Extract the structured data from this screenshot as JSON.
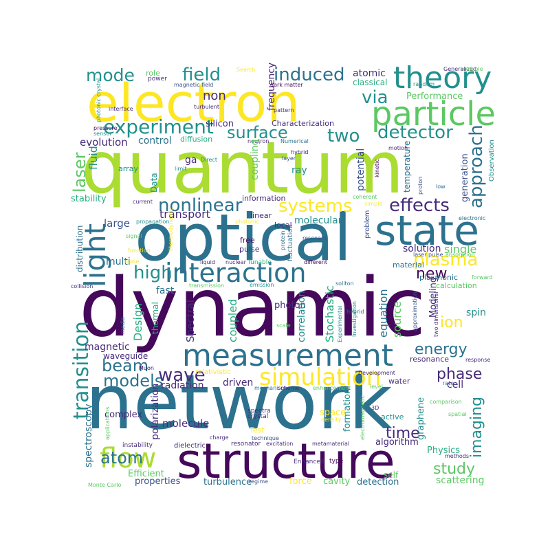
{
  "palette": {
    "d": "#45085b",
    "p": "#472c7a",
    "b": "#3b528b",
    "t": "#2c728e",
    "c": "#21908d",
    "g": "#27ad81",
    "l": "#5cc863",
    "y": "#aadc32",
    "k": "#fde725"
  },
  "words": [
    {
      "text": "quantum",
      "color": "y"
    },
    {
      "text": "dynamic",
      "color": "d"
    },
    {
      "text": "network",
      "color": "t"
    },
    {
      "text": "optical",
      "color": "t"
    },
    {
      "text": "electron",
      "color": "k"
    },
    {
      "text": "structure",
      "color": "d"
    },
    {
      "text": "state",
      "color": "t"
    },
    {
      "text": "particle",
      "color": "l"
    },
    {
      "text": "theory",
      "color": "c"
    },
    {
      "text": "measurement",
      "color": "t"
    },
    {
      "text": "interaction",
      "color": "t"
    },
    {
      "text": "light",
      "color": "t"
    },
    {
      "text": "simulation",
      "color": "k"
    },
    {
      "text": "experiment",
      "color": "c"
    },
    {
      "text": "flow",
      "color": "y"
    },
    {
      "text": "field",
      "color": "c"
    },
    {
      "text": "induced",
      "color": "t"
    },
    {
      "text": "mode",
      "color": "c"
    },
    {
      "text": "surface",
      "color": "c"
    },
    {
      "text": "detector",
      "color": "c"
    },
    {
      "text": "two",
      "color": "c"
    },
    {
      "text": "via",
      "color": "c"
    },
    {
      "text": "nonlinear",
      "color": "t"
    },
    {
      "text": "systems",
      "color": "k"
    },
    {
      "text": "effects",
      "color": "p"
    },
    {
      "text": "approach",
      "color": "t"
    },
    {
      "text": "plasma",
      "color": "k"
    },
    {
      "text": "high",
      "color": "c"
    },
    {
      "text": "new",
      "color": "d"
    },
    {
      "text": "laser",
      "color": "l"
    },
    {
      "text": "transition",
      "color": "c"
    },
    {
      "text": "beam",
      "color": "t"
    },
    {
      "text": "models",
      "color": "t"
    },
    {
      "text": "wave",
      "color": "p"
    },
    {
      "text": "atom",
      "color": "t"
    },
    {
      "text": "energy",
      "color": "t"
    },
    {
      "text": "phase",
      "color": "p"
    },
    {
      "text": "ion",
      "color": "k"
    },
    {
      "text": "imaging",
      "color": "c"
    },
    {
      "text": "time",
      "color": "p"
    },
    {
      "text": "study",
      "color": "l"
    },
    {
      "text": "transport",
      "color": "p"
    },
    {
      "text": "fluid",
      "color": "c"
    },
    {
      "text": "single",
      "color": "l"
    },
    {
      "text": "solution",
      "color": "p"
    },
    {
      "text": "molecular",
      "color": "c"
    },
    {
      "text": "large",
      "color": "b"
    },
    {
      "text": "multi",
      "color": "t"
    },
    {
      "text": "non",
      "color": "p"
    },
    {
      "text": "evolution",
      "color": "p"
    },
    {
      "text": "control",
      "color": "t"
    },
    {
      "text": "silicon",
      "color": "p"
    },
    {
      "text": "frequency",
      "color": "p"
    },
    {
      "text": "atomic",
      "color": "p"
    },
    {
      "text": "classical",
      "color": "g"
    },
    {
      "text": "Performance",
      "color": "l"
    },
    {
      "text": "role",
      "color": "l"
    },
    {
      "text": "power",
      "color": "p"
    },
    {
      "text": "magnetic field",
      "color": "b"
    },
    {
      "text": "dark matter",
      "color": "d"
    },
    {
      "text": "random",
      "color": "c"
    },
    {
      "text": "Generalized",
      "color": "p"
    },
    {
      "text": "multiple",
      "color": "l"
    },
    {
      "text": "Search",
      "color": "k"
    },
    {
      "text": "turbulent",
      "color": "p"
    },
    {
      "text": "pattern",
      "color": "p"
    },
    {
      "text": "interface",
      "color": "p"
    },
    {
      "text": "Characterization",
      "color": "p"
    },
    {
      "text": "pressure",
      "color": "d"
    },
    {
      "text": "sensor",
      "color": "c"
    },
    {
      "text": "photonic crystal",
      "color": "c"
    },
    {
      "text": "neutron",
      "color": "p"
    },
    {
      "text": "Numerical",
      "color": "t"
    },
    {
      "text": "diffusion",
      "color": "g"
    },
    {
      "text": "hybrid",
      "color": "p"
    },
    {
      "text": "layer",
      "color": "b"
    },
    {
      "text": "coupling",
      "color": "l"
    },
    {
      "text": "ray",
      "color": "c"
    },
    {
      "text": "ga",
      "color": "p"
    },
    {
      "text": "Direct",
      "color": "c"
    },
    {
      "text": "limit",
      "color": "c"
    },
    {
      "text": "array",
      "color": "c"
    },
    {
      "text": "Data",
      "color": "c"
    },
    {
      "text": "potential",
      "color": "b"
    },
    {
      "text": "generation",
      "color": "b"
    },
    {
      "text": "temperature",
      "color": "t"
    },
    {
      "text": "kinetic",
      "color": "d"
    },
    {
      "text": "motion",
      "color": "p"
    },
    {
      "text": "proton",
      "color": "b"
    },
    {
      "text": "Observation",
      "color": "c"
    },
    {
      "text": "low",
      "color": "t"
    },
    {
      "text": "stability",
      "color": "g"
    },
    {
      "text": "information",
      "color": "p"
    },
    {
      "text": "current",
      "color": "p"
    },
    {
      "text": "coherent",
      "color": "l"
    },
    {
      "text": "simple",
      "color": "k"
    },
    {
      "text": "electronic",
      "color": "t"
    },
    {
      "text": "propagation",
      "color": "c"
    },
    {
      "text": "photonic",
      "color": "k"
    },
    {
      "text": "linear",
      "color": "p"
    },
    {
      "text": "local",
      "color": "p"
    },
    {
      "text": "problem",
      "color": "b"
    },
    {
      "text": "free",
      "color": "d"
    },
    {
      "text": "pulse",
      "color": "p"
    },
    {
      "text": "protein",
      "color": "t"
    },
    {
      "text": "fluctuation",
      "color": "t"
    },
    {
      "text": "resonant",
      "color": "b"
    },
    {
      "text": "signal",
      "color": "l"
    },
    {
      "text": "Tunable",
      "color": "g"
    },
    {
      "text": "laser pulse",
      "color": "b"
    },
    {
      "text": "absorption",
      "color": "l"
    },
    {
      "text": "liquid",
      "color": "p"
    },
    {
      "text": "nuclear",
      "color": "p"
    },
    {
      "text": "different",
      "color": "d"
    },
    {
      "text": "function",
      "color": "k"
    },
    {
      "text": "thermodynamic",
      "color": "k"
    },
    {
      "text": "material",
      "color": "t"
    },
    {
      "text": "forward",
      "color": "l"
    },
    {
      "text": "distribution",
      "color": "t"
    },
    {
      "text": "noise",
      "color": "k"
    },
    {
      "text": "collision",
      "color": "p"
    },
    {
      "text": "transmission",
      "color": "l"
    },
    {
      "text": "emission",
      "color": "c"
    },
    {
      "text": "soliton",
      "color": "t"
    },
    {
      "text": "plasmonic",
      "color": "t"
    },
    {
      "text": "calculation",
      "color": "l"
    },
    {
      "text": "fast",
      "color": "t"
    },
    {
      "text": "photon",
      "color": "p"
    },
    {
      "text": "Modeling",
      "color": "p"
    },
    {
      "text": "equation",
      "color": "t"
    },
    {
      "text": "source",
      "color": "l"
    },
    {
      "text": "spin",
      "color": "c"
    },
    {
      "text": "Stochastic",
      "color": "g"
    },
    {
      "text": "correlation",
      "color": "c"
    },
    {
      "text": "coupled",
      "color": "g"
    },
    {
      "text": "Spectral",
      "color": "p"
    },
    {
      "text": "Design",
      "color": "g"
    },
    {
      "text": "thermal",
      "color": "g"
    },
    {
      "text": "media",
      "color": "t"
    },
    {
      "text": "scale",
      "color": "l"
    },
    {
      "text": "Experimental",
      "color": "c"
    },
    {
      "text": "Investigation",
      "color": "c"
    },
    {
      "text": "hybrid",
      "color": "t"
    },
    {
      "text": "approximation",
      "color": "b"
    },
    {
      "text": "two dimensional",
      "color": "p"
    },
    {
      "text": "magnetic",
      "color": "p"
    },
    {
      "text": "waveguide",
      "color": "p"
    },
    {
      "text": "resonance",
      "color": "p"
    },
    {
      "text": "response",
      "color": "p"
    },
    {
      "text": "Muon",
      "color": "d"
    },
    {
      "text": "relativistic",
      "color": "k"
    },
    {
      "text": "radiation",
      "color": "p"
    },
    {
      "text": "driven",
      "color": "p"
    },
    {
      "text": "water",
      "color": "p"
    },
    {
      "text": "cell",
      "color": "p"
    },
    {
      "text": "rate",
      "color": "t"
    },
    {
      "text": "level",
      "color": "l"
    },
    {
      "text": "mechanism",
      "color": "t"
    },
    {
      "text": "scheme",
      "color": "p"
    },
    {
      "text": "enhancement",
      "color": "l"
    },
    {
      "text": "Development",
      "color": "p"
    },
    {
      "text": "spectroscopy",
      "color": "t"
    },
    {
      "text": "complex",
      "color": "p"
    },
    {
      "text": "polarization",
      "color": "p"
    },
    {
      "text": "molecule",
      "color": "p"
    },
    {
      "text": "graphene",
      "color": "c"
    },
    {
      "text": "formation",
      "color": "c"
    },
    {
      "text": "space",
      "color": "k"
    },
    {
      "text": "active",
      "color": "c"
    },
    {
      "text": "electromagnetic",
      "color": "l"
    },
    {
      "text": "spatial",
      "color": "l"
    },
    {
      "text": "comparison",
      "color": "l"
    },
    {
      "text": "3D",
      "color": "p"
    },
    {
      "text": "density",
      "color": "k"
    },
    {
      "text": "spectra",
      "color": "p"
    },
    {
      "text": "crystal",
      "color": "p"
    },
    {
      "text": "Test",
      "color": "k"
    },
    {
      "text": "applications",
      "color": "l"
    },
    {
      "text": "charge",
      "color": "p"
    },
    {
      "text": "Physics",
      "color": "g"
    },
    {
      "text": "algorithm",
      "color": "p"
    },
    {
      "text": "methods",
      "color": "p"
    },
    {
      "text": "instability",
      "color": "p"
    },
    {
      "text": "dielectric",
      "color": "p"
    },
    {
      "text": "resonator",
      "color": "p"
    },
    {
      "text": "excitation",
      "color": "p"
    },
    {
      "text": "metamaterial",
      "color": "p"
    },
    {
      "text": "Enhanced",
      "color": "p"
    },
    {
      "text": "type",
      "color": "d"
    },
    {
      "text": "self",
      "color": "l"
    },
    {
      "text": "Efficient",
      "color": "l"
    },
    {
      "text": "properties",
      "color": "b"
    },
    {
      "text": "turbulence",
      "color": "t"
    },
    {
      "text": "regime",
      "color": "b"
    },
    {
      "text": "force",
      "color": "k"
    },
    {
      "text": "cavity",
      "color": "l"
    },
    {
      "text": "detection",
      "color": "t"
    },
    {
      "text": "scattering",
      "color": "l"
    },
    {
      "text": "technique",
      "color": "b"
    },
    {
      "text": "Monte Carlo",
      "color": "l"
    }
  ]
}
